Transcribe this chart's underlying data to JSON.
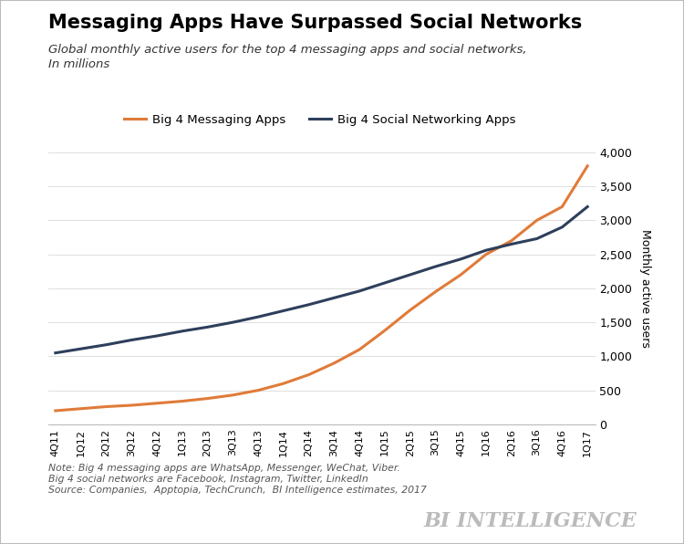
{
  "title": "Messaging Apps Have Surpassed Social Networks",
  "subtitle_line1": "Global monthly active users for the top 4 messaging apps and social networks,",
  "subtitle_line2": "In millions",
  "x_labels": [
    "4Q11",
    "1Q12",
    "2Q12",
    "3Q12",
    "4Q12",
    "1Q13",
    "2Q13",
    "3Q13",
    "4Q13",
    "1Q14",
    "2Q14",
    "3Q14",
    "4Q14",
    "1Q15",
    "2Q15",
    "3Q15",
    "4Q15",
    "1Q16",
    "2Q16",
    "3Q16",
    "4Q16",
    "1Q17"
  ],
  "messaging": [
    200,
    230,
    260,
    280,
    310,
    340,
    380,
    430,
    500,
    600,
    730,
    900,
    1100,
    1380,
    1680,
    1950,
    2200,
    2500,
    2700,
    3000,
    3200,
    3800
  ],
  "social": [
    1050,
    1110,
    1170,
    1240,
    1300,
    1370,
    1430,
    1500,
    1580,
    1670,
    1760,
    1860,
    1960,
    2080,
    2200,
    2320,
    2430,
    2560,
    2650,
    2730,
    2900,
    3200
  ],
  "messaging_color": "#E07B39",
  "social_color": "#2E3F5C",
  "messaging_label": "Big 4 Messaging Apps",
  "social_label": "Big 4 Social Networking Apps",
  "ylabel": "Monthly active users",
  "ylim": [
    0,
    4000
  ],
  "yticks": [
    0,
    500,
    1000,
    1500,
    2000,
    2500,
    3000,
    3500,
    4000
  ],
  "note1": "Note: Big 4 messaging apps are WhatsApp, Messenger, WeChat, Viber.",
  "note2": "Big 4 social networks are Facebook, Instagram, Twitter, LinkedIn",
  "note3": "Source: Companies,  Apptopia, TechCrunch,  BI Intelligence estimates, 2017",
  "watermark": "BI INTELLIGENCE",
  "bg_color": "#FFFFFF",
  "line_width": 2.2,
  "border_color": "#BBBBBB"
}
